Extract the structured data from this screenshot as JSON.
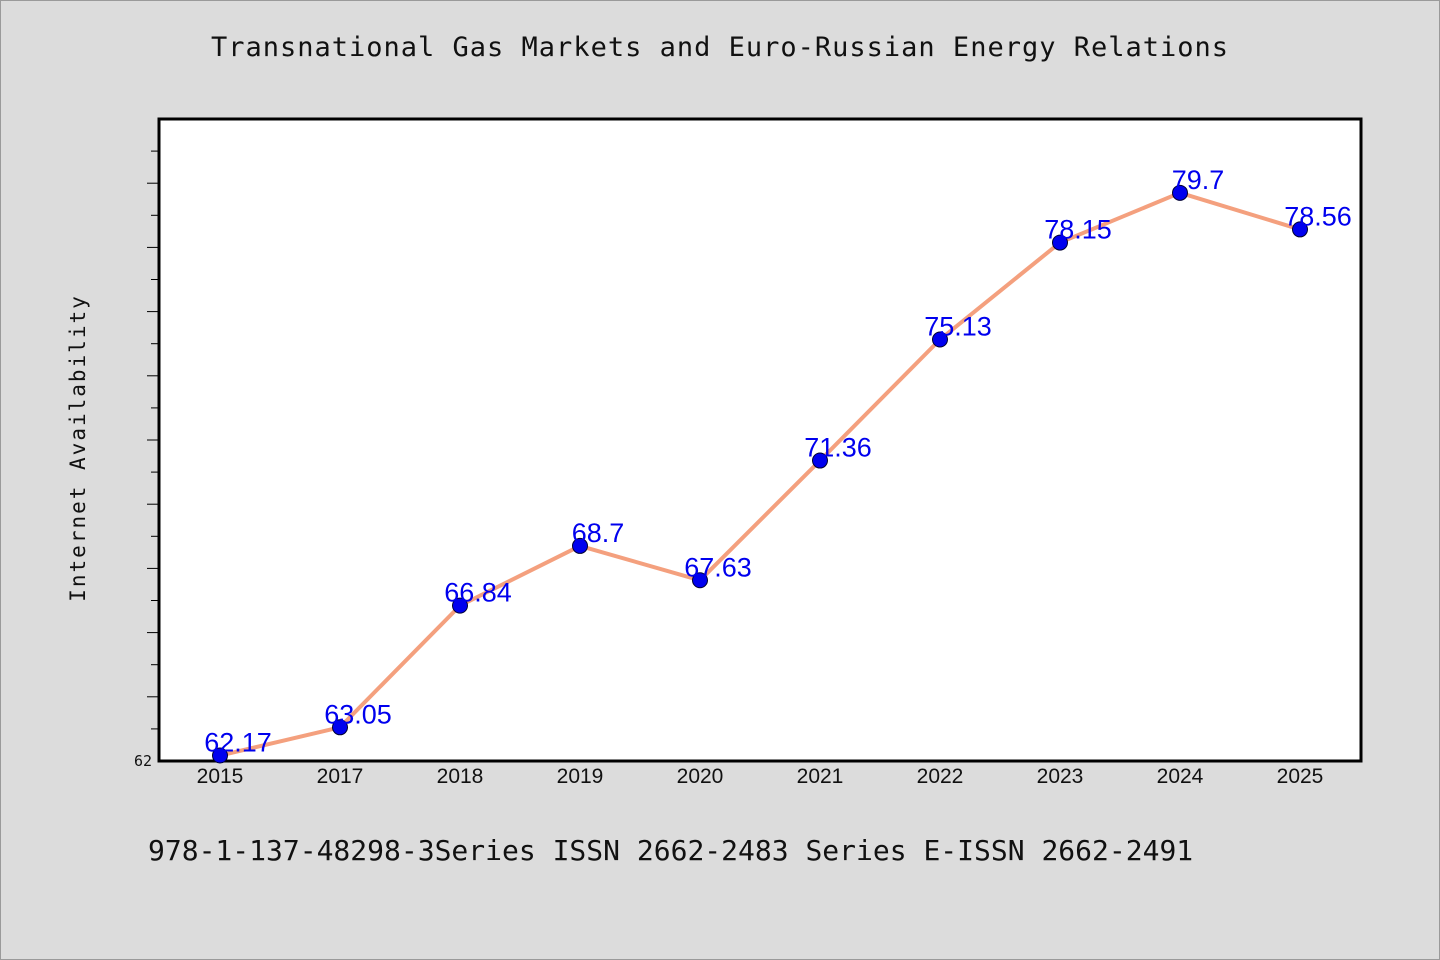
{
  "chart_data": {
    "type": "line",
    "title": "Transnational Gas Markets and Euro-Russian Energy Relations",
    "ylabel": "Internet Availability",
    "xlabel": "",
    "categories": [
      "2015",
      "2017",
      "2018",
      "2019",
      "2020",
      "2021",
      "2022",
      "2023",
      "2024",
      "2025"
    ],
    "values": [
      62.17,
      63.05,
      66.84,
      68.7,
      67.63,
      71.36,
      75.13,
      78.15,
      79.7,
      78.56
    ],
    "data_labels": [
      "62.17",
      "63.05",
      "66.84",
      "68.7",
      "67.63",
      "71.36",
      "75.13",
      "78.15",
      "79.7",
      "78.56"
    ],
    "y_tick_labels": [
      "62"
    ],
    "ylim": [
      62,
      82
    ],
    "grid": false,
    "colors": {
      "line": "#f4a07e",
      "marker": "#0000ee",
      "label": "#0000ee"
    }
  },
  "footer": {
    "text": "978-1-137-48298-3Series ISSN 2662-2483 Series E-ISSN 2662-2491"
  }
}
